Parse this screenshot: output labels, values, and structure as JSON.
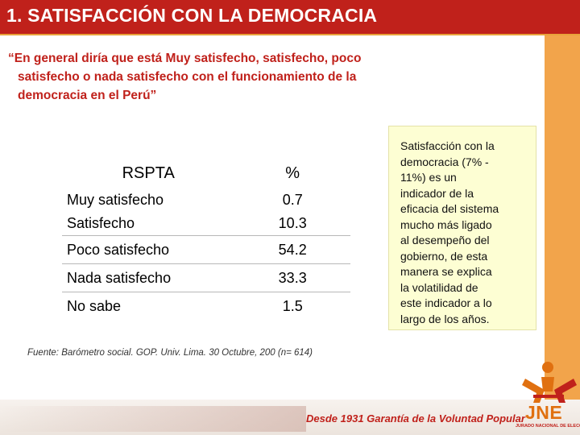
{
  "title": "1. SATISFACCIÓN CON LA DEMOCRACIA",
  "question": {
    "line1": "“En general diría que está Muy satisfecho, satisfecho, poco",
    "line2": "satisfecho o nada satisfecho con el funcionamiento de la",
    "line3": "democracia en el Perú”"
  },
  "table": {
    "header": {
      "category": "RSPTA",
      "value": "%"
    },
    "rows": [
      {
        "category": "Muy satisfecho",
        "value": "0.7"
      },
      {
        "category": "Satisfecho",
        "value": "10.3"
      },
      {
        "category": "Poco satisfecho",
        "value": "54.2"
      },
      {
        "category": "Nada satisfecho",
        "value": "33.3"
      },
      {
        "category": "No sabe",
        "value": "1.5"
      }
    ]
  },
  "source": "Fuente:  Barómetro social. GOP. Univ. Lima. 30 Octubre, 200 (n= 614)",
  "note": {
    "lines": [
      "Satisfacción con la",
      "democracia (7% -",
      "11%) es un",
      "indicador de la",
      "eficacia del sistema",
      "mucho más ligado",
      "al desempeño del",
      "gobierno, de esta",
      "manera se explica",
      "la volatilidad de",
      "este indicador a lo",
      "largo de los años."
    ]
  },
  "footer": {
    "motto": "Desde 1931 Garantía de la Voluntad Popular",
    "logo_text": "JNE",
    "logo_subtitle": "JURADO NACIONAL DE ELECCIONES"
  },
  "colors": {
    "accent_red": "#c0211b",
    "accent_orange": "#f2a44b",
    "note_background": "#fdfed3"
  }
}
